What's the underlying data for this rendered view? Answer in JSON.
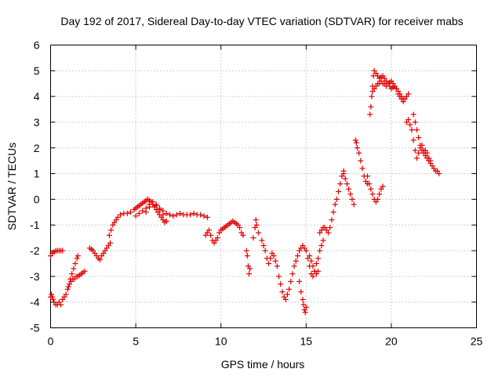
{
  "chart_data": {
    "type": "scatter",
    "title": "Day 192 of 2017, Sidereal Day-to-day VTEC variation (SDTVAR) for receiver mabs",
    "xlabel": "GPS time / hours",
    "ylabel": "SDTVAR / TECUs",
    "xlim": [
      0,
      25
    ],
    "ylim": [
      -5,
      6
    ],
    "xticks": [
      "0",
      "5",
      "10",
      "15",
      "20",
      "25"
    ],
    "yticks": [
      "-5",
      "-4",
      "-3",
      "-2",
      "-1",
      "0",
      "1",
      "2",
      "3",
      "4",
      "5",
      "6"
    ],
    "grid": true,
    "marker": "plus",
    "color": "#e00000",
    "series": [
      {
        "name": "",
        "x": [
          0.0,
          0.05,
          0.1,
          0.15,
          0.2,
          0.3,
          0.4,
          0.5,
          0.6,
          0.7,
          0.8,
          0.9,
          1.0,
          1.1,
          1.2,
          1.3,
          1.4,
          1.5,
          1.6,
          1.7,
          1.8,
          1.9,
          2.0,
          0.0,
          0.1,
          0.2,
          0.3,
          0.4,
          0.5,
          0.6,
          0.7,
          1.05,
          1.15,
          1.25,
          1.35,
          1.45,
          1.55,
          1.6,
          2.3,
          2.4,
          2.5,
          2.6,
          2.7,
          2.8,
          2.9,
          3.0,
          3.1,
          3.2,
          3.3,
          3.4,
          3.5,
          3.45,
          3.55,
          3.65,
          3.75,
          3.85,
          3.95,
          4.1,
          4.3,
          4.5,
          4.7,
          4.9,
          5.0,
          5.1,
          5.2,
          5.3,
          5.4,
          5.5,
          5.6,
          5.7,
          5.8,
          5.9,
          6.0,
          6.1,
          6.2,
          6.3,
          6.4,
          6.5,
          6.6,
          6.7,
          6.8,
          5.6,
          5.8,
          6.0,
          6.2,
          6.4,
          6.6,
          6.8,
          7.0,
          7.2,
          7.4,
          7.6,
          7.8,
          8.0,
          8.2,
          8.4,
          8.6,
          8.8,
          9.0,
          9.2,
          5.0,
          5.2,
          5.4,
          5.6,
          5.8,
          6.0,
          6.2,
          6.4,
          6.6,
          9.1,
          9.2,
          9.3,
          9.4,
          9.5,
          9.6,
          9.7,
          9.8,
          9.9,
          10.0,
          10.1,
          10.2,
          10.3,
          10.4,
          10.5,
          10.6,
          10.7,
          10.8,
          10.9,
          11.0,
          11.1,
          11.2,
          11.3,
          11.5,
          11.55,
          11.6,
          11.65,
          11.7,
          11.9,
          12.0,
          12.05,
          12.1,
          12.2,
          12.4,
          12.5,
          12.6,
          12.7,
          12.8,
          12.9,
          13.0,
          13.1,
          13.2,
          13.3,
          13.4,
          13.5,
          13.6,
          13.7,
          13.8,
          13.9,
          14.0,
          14.1,
          14.2,
          14.3,
          14.4,
          14.5,
          14.6,
          14.7,
          14.8,
          14.9,
          14.6,
          14.7,
          14.8,
          14.85,
          14.9,
          14.95,
          15.0,
          15.0,
          15.1,
          15.2,
          15.3,
          15.4,
          15.5,
          15.6,
          15.7,
          15.8,
          15.9,
          16.0,
          15.2,
          15.3,
          15.4,
          15.5,
          15.6,
          15.7,
          15.8,
          15.9,
          16.0,
          16.1,
          16.2,
          16.3,
          16.4,
          16.5,
          16.6,
          16.7,
          16.8,
          16.9,
          17.0,
          17.1,
          17.2,
          17.2,
          17.3,
          17.4,
          17.5,
          17.6,
          17.7,
          17.8,
          17.9,
          17.95,
          18.0,
          18.1,
          18.2,
          18.3,
          18.4,
          18.5,
          18.6,
          18.6,
          18.7,
          18.8,
          18.9,
          19.0,
          19.1,
          19.2,
          19.3,
          19.4,
          19.5,
          18.75,
          18.8,
          18.85,
          18.9,
          18.95,
          19.0,
          19.1,
          19.2,
          19.3,
          19.4,
          19.5,
          19.6,
          19.7,
          19.8,
          19.9,
          20.0,
          20.1,
          20.2,
          20.3,
          20.4,
          20.5,
          20.6,
          20.7,
          20.8,
          20.9,
          21.0,
          18.9,
          19.0,
          19.1,
          19.2,
          19.3,
          19.4,
          19.5,
          19.6,
          19.7,
          19.8,
          19.9,
          20.0,
          20.1,
          20.2,
          20.3,
          20.4,
          20.5,
          20.6,
          20.7,
          20.9,
          21.0,
          21.1,
          21.2,
          21.3,
          21.4,
          21.5,
          21.6,
          21.7,
          21.8,
          21.9,
          22.0,
          22.1,
          22.2,
          22.3,
          22.4,
          22.5,
          22.6,
          22.7,
          22.8,
          21.3,
          21.4,
          21.5,
          21.6,
          21.7,
          21.8,
          21.9,
          22.0,
          22.1,
          22.2,
          22.3
        ],
        "y": [
          -3.8,
          -3.7,
          -3.8,
          -3.9,
          -4.0,
          -4.1,
          -4.1,
          -4.0,
          -4.1,
          -3.9,
          -3.8,
          -3.7,
          -3.5,
          -3.3,
          -3.2,
          -3.1,
          -3.1,
          -3.0,
          -3.0,
          -2.95,
          -2.9,
          -2.85,
          -2.8,
          -2.2,
          -2.1,
          -2.05,
          -2.0,
          -2.0,
          -2.0,
          -2.0,
          -2.0,
          -3.4,
          -3.1,
          -2.9,
          -2.7,
          -2.5,
          -2.3,
          -2.2,
          -1.9,
          -1.95,
          -2.0,
          -2.1,
          -2.2,
          -2.3,
          -2.35,
          -2.2,
          -2.1,
          -2.0,
          -1.9,
          -1.8,
          -1.7,
          -1.4,
          -1.2,
          -1.0,
          -0.9,
          -0.8,
          -0.7,
          -0.6,
          -0.55,
          -0.55,
          -0.5,
          -0.4,
          -0.35,
          -0.3,
          -0.25,
          -0.2,
          -0.15,
          -0.1,
          -0.05,
          0.0,
          -0.05,
          -0.1,
          -0.2,
          -0.3,
          -0.4,
          -0.5,
          -0.6,
          -0.7,
          -0.8,
          -0.9,
          -0.85,
          -0.5,
          -0.3,
          -0.2,
          -0.25,
          -0.35,
          -0.45,
          -0.55,
          -0.6,
          -0.65,
          -0.6,
          -0.55,
          -0.6,
          -0.6,
          -0.6,
          -0.55,
          -0.6,
          -0.6,
          -0.65,
          -0.7,
          -0.65,
          -0.55,
          -0.45,
          -0.35,
          -0.2,
          -0.1,
          -0.2,
          -0.4,
          -0.6,
          -1.4,
          -1.3,
          -1.2,
          -1.4,
          -1.6,
          -1.7,
          -1.6,
          -1.5,
          -1.3,
          -1.2,
          -1.15,
          -1.1,
          -1.05,
          -1.0,
          -0.95,
          -0.9,
          -0.85,
          -0.9,
          -0.95,
          -1.0,
          -1.1,
          -1.3,
          -1.4,
          -2.0,
          -2.2,
          -2.6,
          -2.9,
          -2.7,
          -1.5,
          -1.1,
          -0.8,
          -1.0,
          -1.3,
          -1.6,
          -1.8,
          -2.0,
          -2.3,
          -2.5,
          -2.3,
          -2.1,
          -2.2,
          -2.4,
          -2.6,
          -3.0,
          -3.3,
          -3.6,
          -3.8,
          -3.9,
          -3.7,
          -3.5,
          -3.2,
          -2.9,
          -2.6,
          -2.4,
          -2.2,
          -2.0,
          -1.9,
          -1.8,
          -1.9,
          -3.2,
          -3.6,
          -3.9,
          -4.1,
          -4.3,
          -4.4,
          -4.2,
          -2.0,
          -2.3,
          -2.6,
          -2.9,
          -3.0,
          -2.8,
          -2.5,
          -2.3,
          -2.0,
          -1.8,
          -1.6,
          -2.2,
          -2.4,
          -2.6,
          -2.8,
          -2.9,
          -2.8,
          -1.3,
          -1.2,
          -1.1,
          -1.1,
          -1.2,
          -1.3,
          -1.1,
          -0.8,
          -0.5,
          -0.2,
          0.0,
          0.3,
          0.6,
          0.9,
          1.1,
          1.0,
          0.8,
          0.6,
          0.4,
          0.2,
          0.0,
          -0.2,
          2.3,
          2.2,
          2.0,
          1.8,
          1.5,
          1.2,
          0.9,
          0.7,
          0.6,
          0.9,
          0.6,
          0.4,
          0.2,
          0.0,
          -0.1,
          0.0,
          0.2,
          0.4,
          0.5,
          3.3,
          3.6,
          4.0,
          4.4,
          4.8,
          5.0,
          4.9,
          4.8,
          4.7,
          4.75,
          4.8,
          4.7,
          4.6,
          4.5,
          4.55,
          4.6,
          4.5,
          4.4,
          4.3,
          4.1,
          4.0,
          3.9,
          3.8,
          3.9,
          4.0,
          4.1,
          4.2,
          4.3,
          4.4,
          4.5,
          4.5,
          4.6,
          4.5,
          4.5,
          4.4,
          4.5,
          4.4,
          4.3,
          4.35,
          4.4,
          4.3,
          4.2,
          4.1,
          4.0,
          3.9,
          3.0,
          3.1,
          2.9,
          2.7,
          2.3,
          1.9,
          1.6,
          1.8,
          2.0,
          2.1,
          1.9,
          1.7,
          1.6,
          1.5,
          1.4,
          1.3,
          1.2,
          1.1,
          1.1,
          1.0,
          3.3,
          3.0,
          2.7,
          2.4,
          2.1,
          1.9,
          1.8,
          1.9,
          1.8,
          1.6,
          1.5
        ]
      }
    ]
  }
}
